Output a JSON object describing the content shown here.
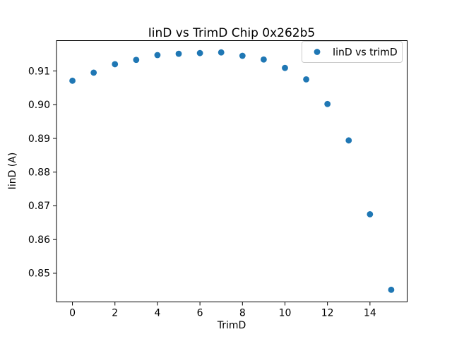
{
  "figure": {
    "background": "#ffffff"
  },
  "chart_data": {
    "type": "scatter",
    "title": "IinD vs TrimD Chip 0x262b5",
    "xlabel": "TrimD",
    "ylabel": "IinD (A)",
    "legend": {
      "position": "upper right",
      "entries": [
        {
          "label": "IinD vs trimD",
          "marker_color": "#1f77b4"
        }
      ]
    },
    "x": [
      0,
      1,
      2,
      3,
      4,
      5,
      6,
      7,
      8,
      9,
      10,
      11,
      12,
      13,
      14,
      15
    ],
    "y": [
      0.9071,
      0.9095,
      0.912,
      0.9133,
      0.9147,
      0.9151,
      0.9153,
      0.9155,
      0.9145,
      0.9134,
      0.9109,
      0.9075,
      0.9002,
      0.8894,
      0.8675,
      0.8451
    ],
    "x_ticks": [
      0,
      2,
      4,
      6,
      8,
      10,
      12,
      14
    ],
    "y_ticks": [
      0.85,
      0.86,
      0.87,
      0.88,
      0.89,
      0.9,
      0.91
    ],
    "xlim": [
      -0.75,
      15.75
    ],
    "ylim": [
      0.8415,
      0.919
    ],
    "grid": false,
    "marker_color": "#1f77b4",
    "axis_color": "#000000",
    "text_color": "#000000",
    "legend_border_color": "#cccccc"
  }
}
